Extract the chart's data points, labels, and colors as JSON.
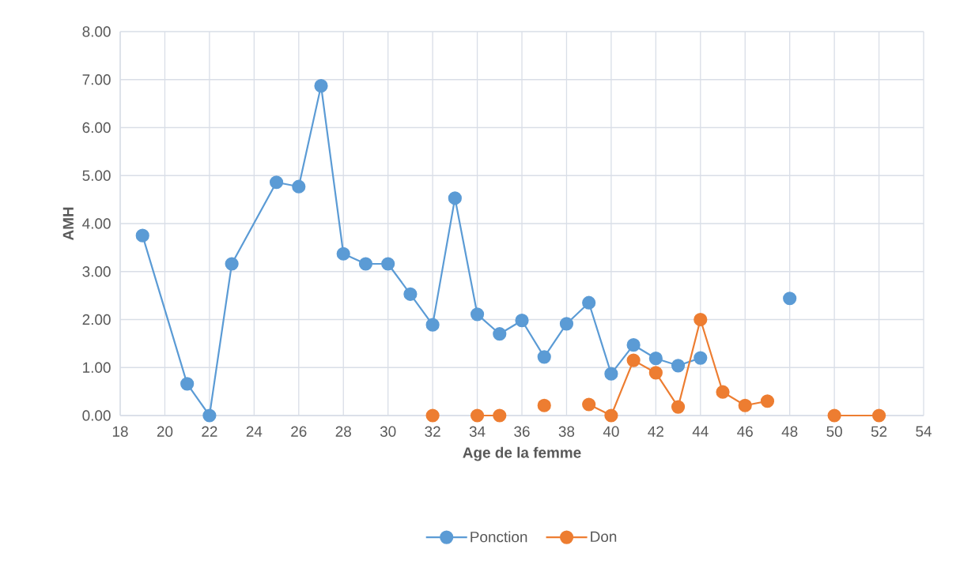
{
  "chart_data": {
    "type": "line",
    "xlabel": "Age de la femme",
    "ylabel": "AMH",
    "series": [
      {
        "name": "Ponction",
        "color": "#5b9bd5",
        "x": [
          19,
          21,
          22,
          23,
          25,
          26,
          27,
          28,
          29,
          30,
          31,
          32,
          33,
          34,
          35,
          36,
          37,
          38,
          39,
          40,
          41,
          42,
          43,
          44,
          45,
          48
        ],
        "values": [
          3.75,
          0.66,
          0,
          3.16,
          4.86,
          4.77,
          6.87,
          3.37,
          3.16,
          3.16,
          2.53,
          1.89,
          4.53,
          2.11,
          1.7,
          1.98,
          1.22,
          1.91,
          2.35,
          0.87,
          1.47,
          1.19,
          1.04,
          1.2,
          null,
          2.44
        ]
      },
      {
        "name": "Don",
        "color": "#ed7d31",
        "x": [
          32,
          33,
          34,
          35,
          36,
          37,
          38,
          39,
          40,
          41,
          42,
          43,
          44,
          45,
          46,
          47,
          48,
          50,
          52
        ],
        "values": [
          0,
          null,
          0,
          0,
          null,
          0.21,
          null,
          0.23,
          0,
          1.15,
          0.89,
          0.18,
          2.0,
          0.49,
          0.21,
          0.3,
          null,
          0,
          0
        ]
      }
    ],
    "xlim": [
      18,
      54
    ],
    "xticks": [
      18,
      20,
      22,
      24,
      26,
      28,
      30,
      32,
      34,
      36,
      38,
      40,
      42,
      44,
      46,
      48,
      50,
      52,
      54
    ],
    "ylim": [
      0,
      8
    ],
    "yticks": [
      {
        "value": 0,
        "label": "0.00"
      },
      {
        "value": 1,
        "label": "1.00"
      },
      {
        "value": 2,
        "label": "2.00"
      },
      {
        "value": 3,
        "label": "3.00"
      },
      {
        "value": 4,
        "label": "4.00"
      },
      {
        "value": 5,
        "label": "5.00"
      },
      {
        "value": 6,
        "label": "6.00"
      },
      {
        "value": 7,
        "label": "7.00"
      },
      {
        "value": 8,
        "label": "8.00"
      }
    ],
    "grid": true,
    "legend": "bottom",
    "marker": "circle",
    "line_style": "solid"
  }
}
